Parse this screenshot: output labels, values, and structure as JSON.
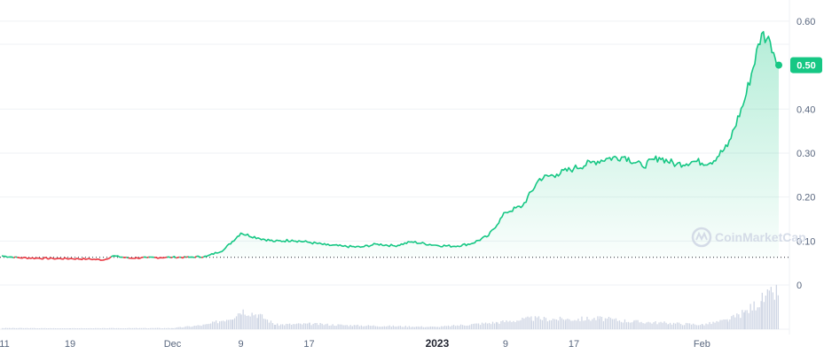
{
  "chart_data": {
    "type": "line",
    "title": "",
    "xlabel": "",
    "ylabel": "",
    "ylim": [
      0,
      0.64
    ],
    "yticks": [
      {
        "value": 0.1,
        "label": "0.10"
      },
      {
        "value": 0.2,
        "label": "0.20"
      },
      {
        "value": 0.3,
        "label": "0.30"
      },
      {
        "value": 0.4,
        "label": "0.40"
      },
      {
        "value": 0.6,
        "label": "0.60"
      }
    ],
    "xticks": [
      {
        "date": "2022-11-11",
        "label": "11",
        "bold": false
      },
      {
        "date": "2022-11-19",
        "label": "19",
        "bold": false
      },
      {
        "date": "2022-12-01",
        "label": "Dec",
        "bold": false
      },
      {
        "date": "2022-12-09",
        "label": "9",
        "bold": false
      },
      {
        "date": "2022-12-17",
        "label": "17",
        "bold": false
      },
      {
        "date": "2023-01-01",
        "label": "2023",
        "bold": true
      },
      {
        "date": "2023-01-09",
        "label": "9",
        "bold": false
      },
      {
        "date": "2023-01-17",
        "label": "17",
        "bold": false
      },
      {
        "date": "2023-02-01",
        "label": "Feb",
        "bold": false
      }
    ],
    "reference_price": 0.063,
    "current_price": {
      "value": 0.5,
      "label": "0.50"
    },
    "volume_axis_label": "0",
    "colors": {
      "up": "#16c784",
      "down": "#ea3943",
      "fill": "#16c784",
      "badge": "#16c784",
      "volume": "#cfd6e4"
    },
    "series": [
      {
        "points": [
          [
            "2022-11-11",
            0.066
          ],
          [
            "2022-11-13",
            0.062
          ],
          [
            "2022-11-15",
            0.061
          ],
          [
            "2022-11-17",
            0.06
          ],
          [
            "2022-11-19",
            0.06
          ],
          [
            "2022-11-21",
            0.059
          ],
          [
            "2022-11-23",
            0.057
          ],
          [
            "2022-11-24",
            0.066
          ],
          [
            "2022-11-26",
            0.061
          ],
          [
            "2022-11-28",
            0.062
          ],
          [
            "2022-12-01",
            0.063
          ],
          [
            "2022-12-03",
            0.063
          ],
          [
            "2022-12-05",
            0.065
          ],
          [
            "2022-12-07",
            0.08
          ],
          [
            "2022-12-09",
            0.118
          ],
          [
            "2022-12-11",
            0.107
          ],
          [
            "2022-12-13",
            0.099
          ],
          [
            "2022-12-15",
            0.102
          ],
          [
            "2022-12-17",
            0.097
          ],
          [
            "2022-12-19",
            0.091
          ],
          [
            "2022-12-21",
            0.088
          ],
          [
            "2022-12-23",
            0.086
          ],
          [
            "2022-12-25",
            0.093
          ],
          [
            "2022-12-27",
            0.089
          ],
          [
            "2022-12-29",
            0.098
          ],
          [
            "2023-01-01",
            0.09
          ],
          [
            "2023-01-03",
            0.088
          ],
          [
            "2023-01-05",
            0.094
          ],
          [
            "2023-01-07",
            0.112
          ],
          [
            "2023-01-09",
            0.165
          ],
          [
            "2023-01-11",
            0.18
          ],
          [
            "2023-01-13",
            0.242
          ],
          [
            "2023-01-15",
            0.252
          ],
          [
            "2023-01-17",
            0.265
          ],
          [
            "2023-01-19",
            0.278
          ],
          [
            "2023-01-21",
            0.288
          ],
          [
            "2023-01-23",
            0.292
          ],
          [
            "2023-01-25",
            0.27
          ],
          [
            "2023-01-27",
            0.29
          ],
          [
            "2023-01-29",
            0.274
          ],
          [
            "2023-01-31",
            0.281
          ],
          [
            "2023-02-02",
            0.278
          ],
          [
            "2023-02-04",
            0.315
          ],
          [
            "2023-02-06",
            0.42
          ],
          [
            "2023-02-08",
            0.572
          ],
          [
            "2023-02-09",
            0.553
          ],
          [
            "2023-02-10",
            0.5
          ]
        ]
      }
    ],
    "volume": [
      [
        "2022-11-11",
        3
      ],
      [
        "2022-11-19",
        2
      ],
      [
        "2022-12-01",
        3
      ],
      [
        "2022-12-05",
        12
      ],
      [
        "2022-12-08",
        32
      ],
      [
        "2022-12-09",
        50
      ],
      [
        "2022-12-11",
        38
      ],
      [
        "2022-12-13",
        12
      ],
      [
        "2022-12-17",
        14
      ],
      [
        "2022-12-22",
        10
      ],
      [
        "2023-01-01",
        6
      ],
      [
        "2023-01-08",
        18
      ],
      [
        "2023-01-12",
        28
      ],
      [
        "2023-01-16",
        26
      ],
      [
        "2023-01-20",
        28
      ],
      [
        "2023-01-24",
        20
      ],
      [
        "2023-01-28",
        16
      ],
      [
        "2023-02-01",
        12
      ],
      [
        "2023-02-04",
        24
      ],
      [
        "2023-02-06",
        45
      ],
      [
        "2023-02-08",
        78
      ],
      [
        "2023-02-10",
        100
      ]
    ],
    "watermark": "CoinMarketCap"
  }
}
